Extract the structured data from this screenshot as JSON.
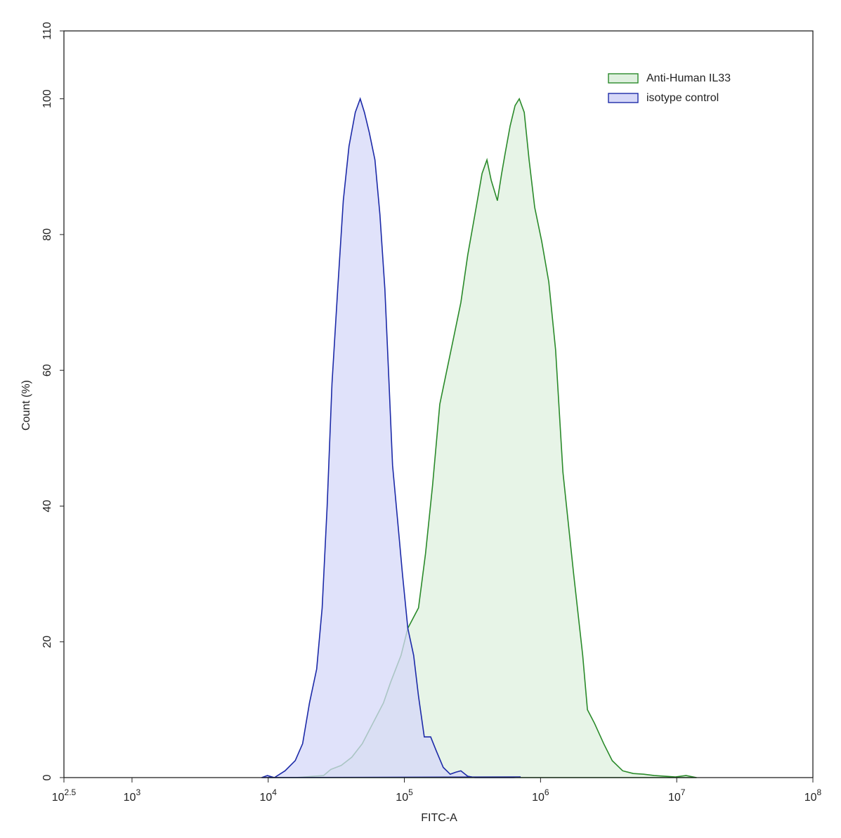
{
  "chart_data": {
    "type": "histogram-overlay",
    "x_label": "FITC-A",
    "y_label": "Count  (%)",
    "xscale": "log",
    "xlim": [
      316.227766,
      100000000
    ],
    "ylim": [
      0,
      110
    ],
    "xticks": [
      {
        "value": 316.227766,
        "label": "10",
        "superscript": "2.5"
      },
      {
        "value": 1000,
        "label": "10",
        "superscript": "3"
      },
      {
        "value": 10000,
        "label": "10",
        "superscript": "4"
      },
      {
        "value": 100000,
        "label": "10",
        "superscript": "5"
      },
      {
        "value": 1000000,
        "label": "10",
        "superscript": "6"
      },
      {
        "value": 10000000,
        "label": "10",
        "superscript": "7"
      },
      {
        "value": 100000000,
        "label": "10",
        "superscript": "8"
      }
    ],
    "yticks": [
      0,
      20,
      40,
      60,
      80,
      100,
      110
    ],
    "legend": "upper right",
    "series": [
      {
        "name": "Anti-Human IL33",
        "color": "#2a8a2a",
        "fill": "#dff0df",
        "x": [
          9860,
          15800,
          25500,
          28800,
          34400,
          41100,
          49100,
          58700,
          70200,
          79100,
          94500,
          106000,
          127000,
          143000,
          161000,
          182000,
          205000,
          231000,
          260000,
          292000,
          330000,
          372000,
          404000,
          434000,
          482000,
          518000,
          550000,
          598000,
          650000,
          698000,
          759000,
          824000,
          906000,
          1020000,
          1150000,
          1290000,
          1460000,
          1750000,
          2040000,
          2210000,
          2490000,
          2910000,
          3360000,
          4010000,
          4800000,
          5730000,
          6850000,
          8190000,
          9790000,
          11700000,
          14000000
        ],
        "values": [
          0,
          0,
          0.3,
          1.2,
          1.8,
          3,
          5,
          8,
          11,
          14,
          18,
          22,
          25,
          33,
          43,
          55,
          60,
          65,
          70,
          77,
          83,
          89,
          91,
          88,
          85,
          89,
          92,
          96,
          99,
          100,
          98,
          91,
          84,
          79,
          73,
          63,
          45,
          30,
          18,
          10,
          8,
          5,
          2.5,
          1,
          0.6,
          0.5,
          0.3,
          0.2,
          0.1,
          0.3,
          0
        ]
      },
      {
        "name": "isotype control",
        "color": "#1c2aa8",
        "fill": "#d6d8f8",
        "x": [
          8950,
          9860,
          11100,
          13300,
          15800,
          17900,
          20100,
          22700,
          24900,
          27100,
          29400,
          32400,
          35600,
          39200,
          43600,
          47400,
          50900,
          55300,
          60800,
          66100,
          71900,
          77200,
          81900,
          89100,
          96800,
          106000,
          117000,
          127000,
          140000,
          156000,
          171000,
          193000,
          217000,
          239000,
          260000,
          292000,
          330000,
          634000,
          714000
        ],
        "values": [
          0,
          0.3,
          0,
          1,
          2.5,
          5,
          11,
          16,
          25,
          40,
          58,
          72,
          85,
          93,
          98,
          100,
          98,
          95,
          91,
          83,
          72,
          58,
          46,
          38,
          30,
          22,
          18,
          12,
          6,
          6,
          4,
          1.5,
          0.5,
          0.8,
          1,
          0.2,
          0,
          0,
          0.1
        ]
      }
    ]
  }
}
